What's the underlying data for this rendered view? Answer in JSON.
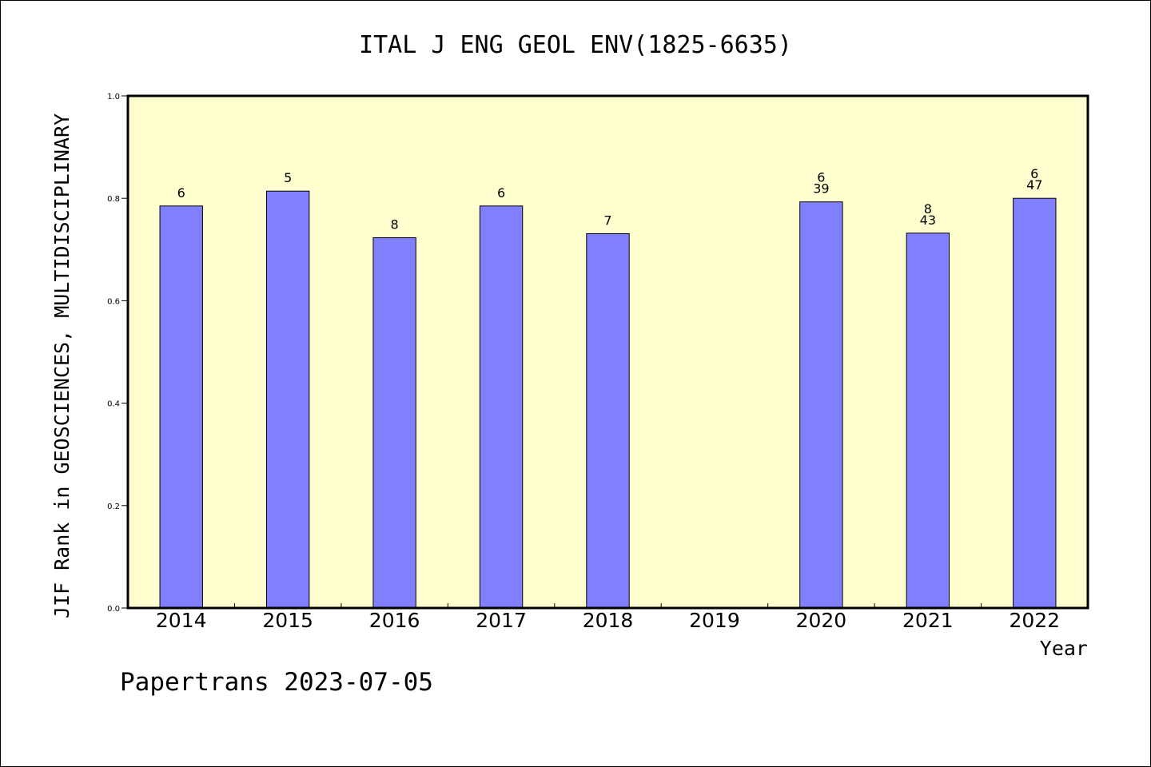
{
  "chart_data": {
    "type": "bar",
    "title": "ITAL J ENG GEOL ENV(1825-6635)",
    "xlabel": "Year",
    "ylabel": "JIF Rank in GEOSCIENCES, MULTIDISCIPLINARY",
    "ylim": [
      0,
      1.0
    ],
    "yticks": [
      "0.0",
      "0.2",
      "0.4",
      "0.6",
      "0.8",
      "1.0"
    ],
    "categories": [
      "2014",
      "2015",
      "2016",
      "2017",
      "2018",
      "2019",
      "2020",
      "2021",
      "2022"
    ],
    "values": [
      0.785,
      0.814,
      0.723,
      0.785,
      0.731,
      null,
      0.793,
      0.732,
      0.8
    ],
    "labels": [
      [
        "6"
      ],
      [
        "5"
      ],
      [
        "8"
      ],
      [
        "6"
      ],
      [
        "7"
      ],
      [],
      [
        "6",
        "39"
      ],
      [
        "8",
        "43"
      ],
      [
        "6",
        "47"
      ]
    ],
    "grid": false,
    "colors": {
      "bar": "#8080ff",
      "plot_background": "#ffffd0"
    }
  },
  "footer": "Papertrans 2023-07-05"
}
